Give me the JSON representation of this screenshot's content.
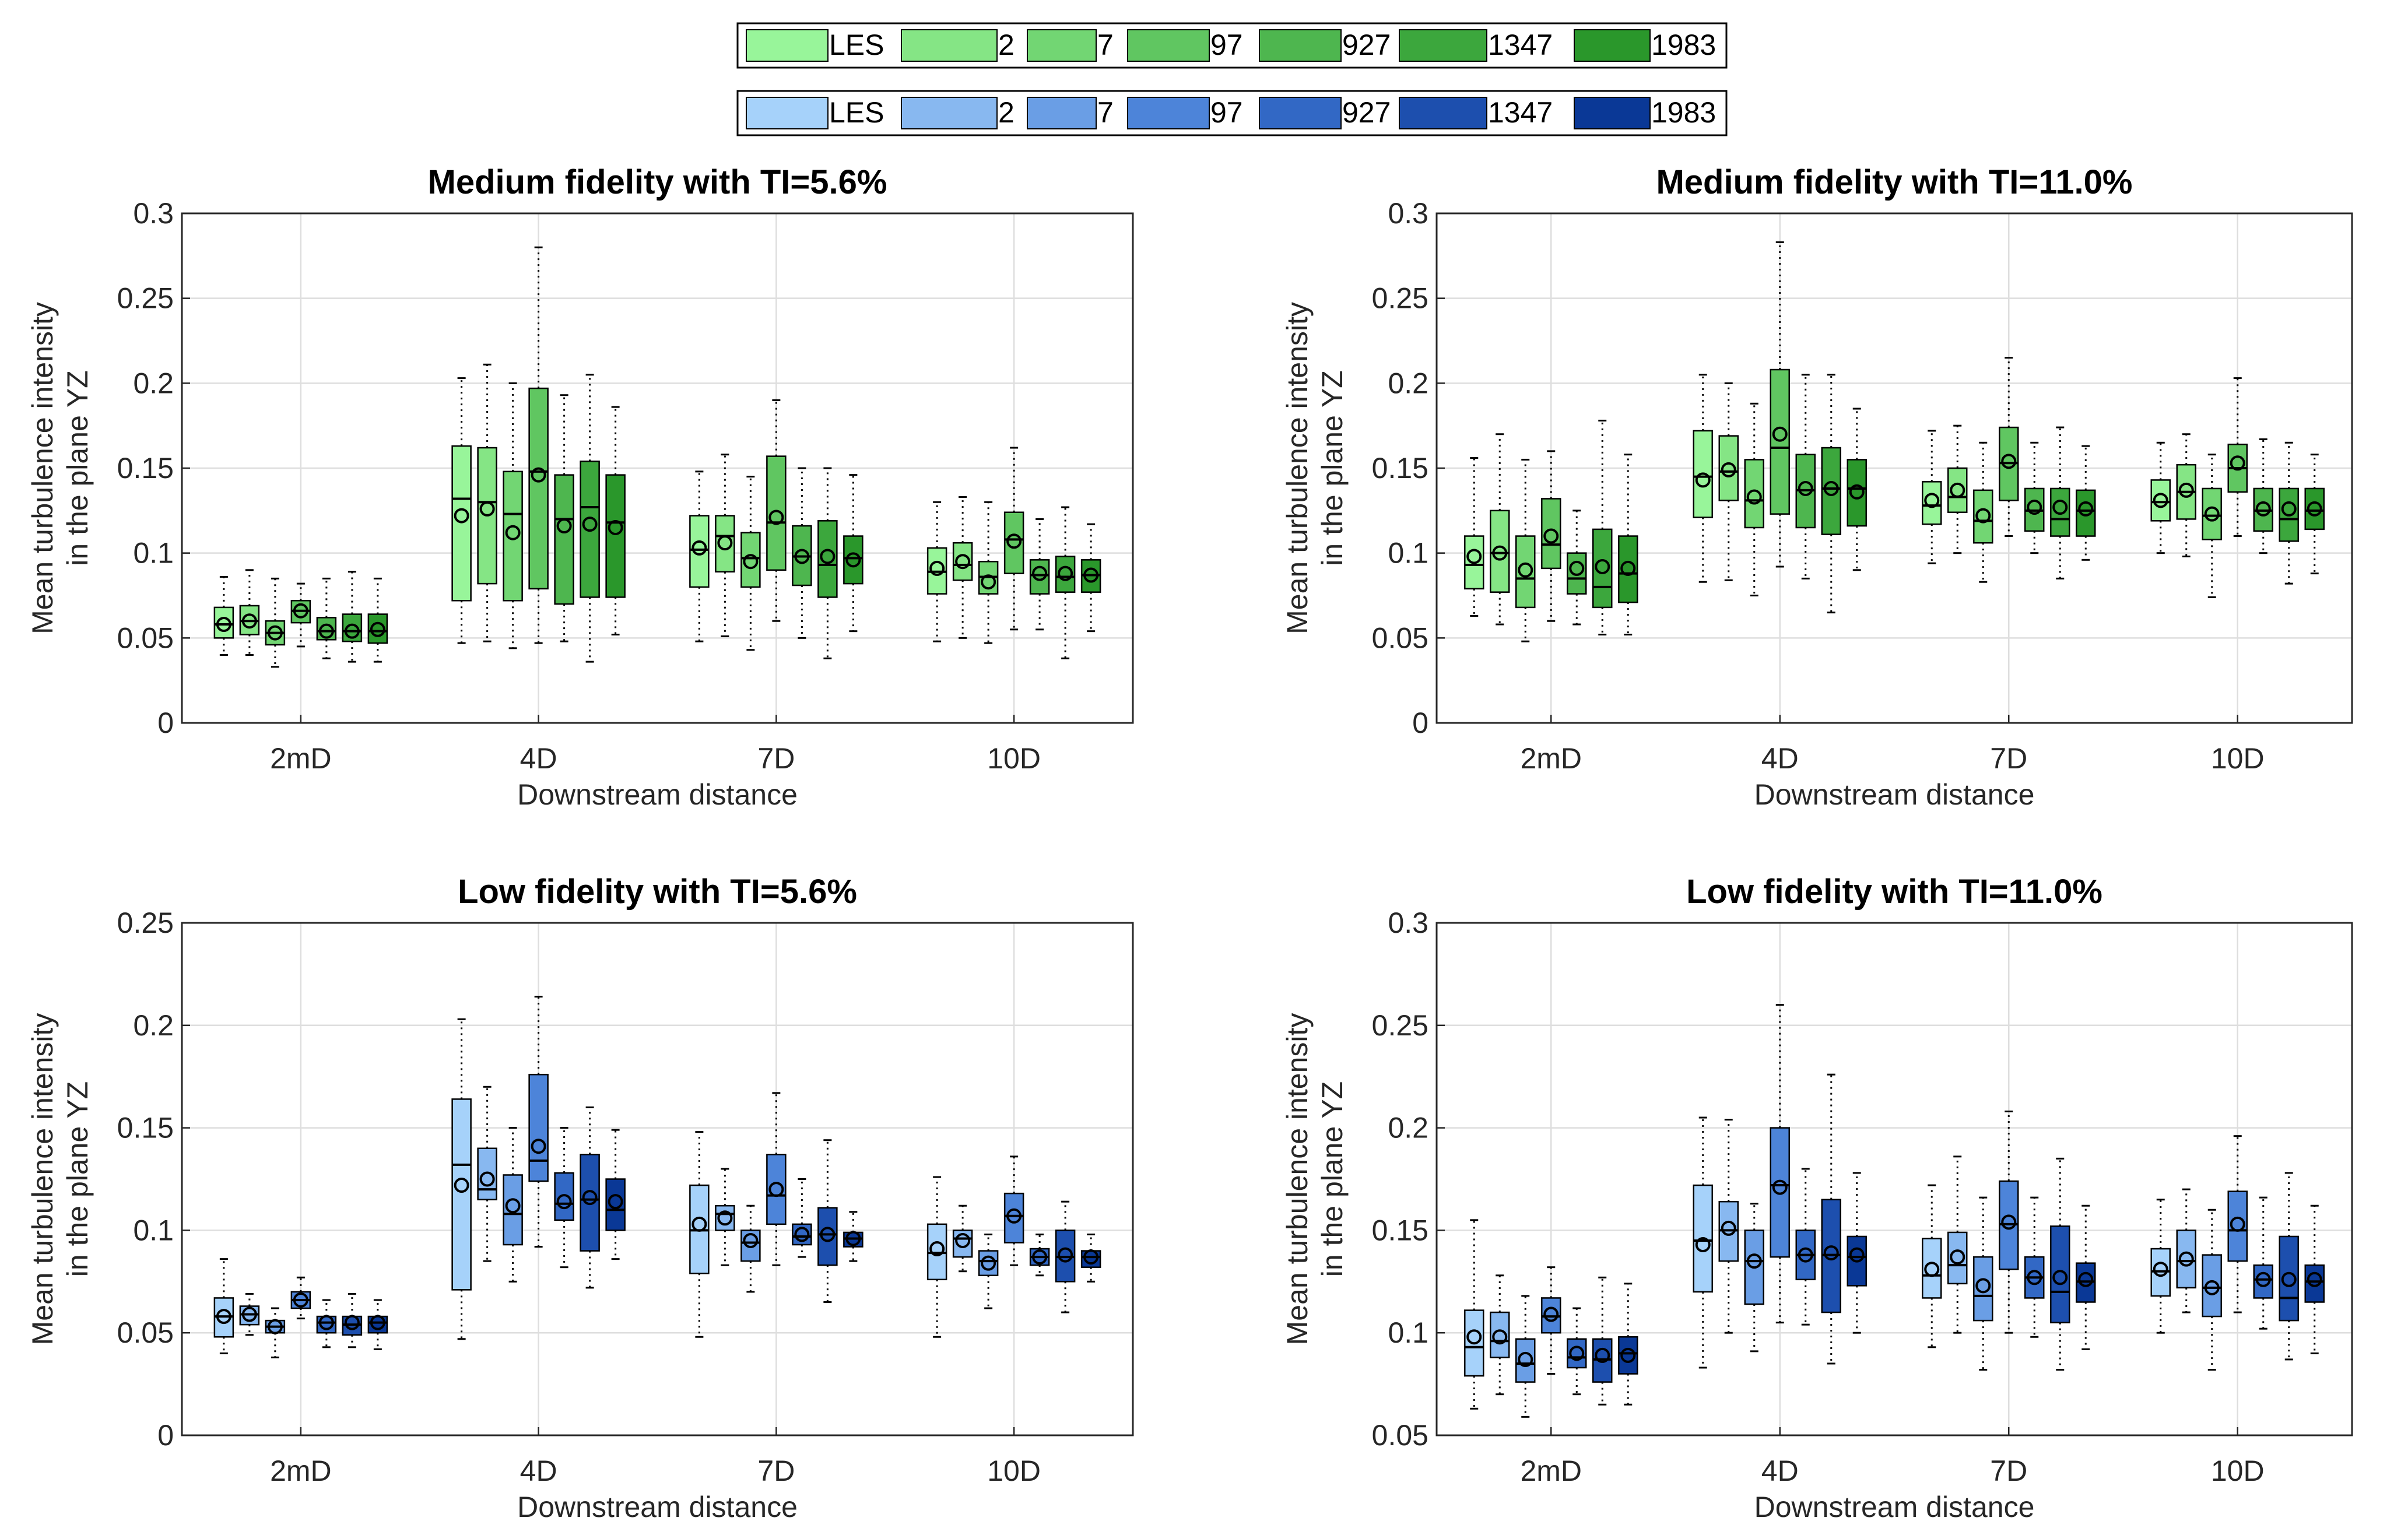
{
  "legends": [
    {
      "labels": [
        "LES",
        "2",
        "7",
        "97",
        "927",
        "1347",
        "1983"
      ],
      "colors": [
        "#98f59a",
        "#85e585",
        "#72d673",
        "#60c661",
        "#4eb64f",
        "#3ca73d",
        "#2a972b"
      ]
    },
    {
      "labels": [
        "LES",
        "2",
        "7",
        "97",
        "927",
        "1347",
        "1983"
      ],
      "colors": [
        "#a6d2fa",
        "#88b8f0",
        "#6a9ee5",
        "#4d84d9",
        "#3268c5",
        "#1d4fae",
        "#0a3896"
      ]
    }
  ],
  "chart_data": [
    {
      "type": "boxplot",
      "title": "Medium fidelity with TI=5.6%",
      "xlabel": "Downstream distance",
      "ylabel": [
        "Mean turbulence intensity",
        "in the plane YZ"
      ],
      "categories": [
        "2mD",
        "4D",
        "7D",
        "10D"
      ],
      "ylim": [
        0,
        0.3
      ],
      "yticks": [
        0,
        0.05,
        0.1,
        0.15,
        0.2,
        0.25,
        0.3
      ],
      "ytick_labels": [
        "0",
        "0.05",
        "0.1",
        "0.15",
        "0.2",
        "0.25",
        "0.3"
      ],
      "palette": 0,
      "groups": [
        [
          [
            0.04,
            0.05,
            0.058,
            0.068,
            0.086,
            0.058
          ],
          [
            0.04,
            0.052,
            0.06,
            0.069,
            0.09,
            0.06
          ],
          [
            0.033,
            0.046,
            0.053,
            0.06,
            0.085,
            0.053
          ],
          [
            0.045,
            0.059,
            0.066,
            0.072,
            0.082,
            0.066
          ],
          [
            0.038,
            0.049,
            0.054,
            0.062,
            0.085,
            0.054
          ],
          [
            0.036,
            0.048,
            0.054,
            0.064,
            0.089,
            0.054
          ],
          [
            0.036,
            0.047,
            0.054,
            0.064,
            0.085,
            0.055
          ]
        ],
        [
          [
            0.047,
            0.072,
            0.132,
            0.163,
            0.203,
            0.122
          ],
          [
            0.048,
            0.082,
            0.13,
            0.162,
            0.211,
            0.126
          ],
          [
            0.044,
            0.072,
            0.123,
            0.148,
            0.2,
            0.112
          ],
          [
            0.047,
            0.079,
            0.148,
            0.197,
            0.28,
            0.146
          ],
          [
            0.048,
            0.07,
            0.12,
            0.146,
            0.193,
            0.116
          ],
          [
            0.036,
            0.074,
            0.127,
            0.154,
            0.205,
            0.117
          ],
          [
            0.052,
            0.074,
            0.118,
            0.146,
            0.186,
            0.115
          ]
        ],
        [
          [
            0.048,
            0.08,
            0.102,
            0.122,
            0.148,
            0.103
          ],
          [
            0.051,
            0.089,
            0.11,
            0.122,
            0.158,
            0.106
          ],
          [
            0.043,
            0.08,
            0.097,
            0.112,
            0.145,
            0.095
          ],
          [
            0.06,
            0.09,
            0.118,
            0.157,
            0.19,
            0.121
          ],
          [
            0.05,
            0.081,
            0.098,
            0.116,
            0.15,
            0.098
          ],
          [
            0.038,
            0.074,
            0.093,
            0.119,
            0.15,
            0.098
          ],
          [
            0.054,
            0.082,
            0.097,
            0.11,
            0.146,
            0.096
          ]
        ],
        [
          [
            0.048,
            0.076,
            0.089,
            0.103,
            0.13,
            0.091
          ],
          [
            0.05,
            0.084,
            0.093,
            0.106,
            0.133,
            0.095
          ],
          [
            0.047,
            0.076,
            0.086,
            0.095,
            0.13,
            0.083
          ],
          [
            0.055,
            0.088,
            0.108,
            0.124,
            0.162,
            0.107
          ],
          [
            0.055,
            0.076,
            0.087,
            0.096,
            0.12,
            0.088
          ],
          [
            0.038,
            0.077,
            0.086,
            0.098,
            0.127,
            0.088
          ],
          [
            0.054,
            0.077,
            0.087,
            0.096,
            0.117,
            0.087
          ]
        ]
      ]
    },
    {
      "type": "boxplot",
      "title": "Medium fidelity with TI=11.0%",
      "xlabel": "Downstream distance",
      "ylabel": [
        "Mean turbulence intensity",
        "in the plane YZ"
      ],
      "categories": [
        "2mD",
        "4D",
        "7D",
        "10D"
      ],
      "ylim": [
        0,
        0.3
      ],
      "yticks": [
        0,
        0.05,
        0.1,
        0.15,
        0.2,
        0.25,
        0.3
      ],
      "ytick_labels": [
        "0",
        "0.05",
        "0.1",
        "0.15",
        "0.2",
        "0.25",
        "0.3"
      ],
      "palette": 0,
      "groups": [
        [
          [
            0.063,
            0.079,
            0.093,
            0.11,
            0.156,
            0.098
          ],
          [
            0.058,
            0.077,
            0.1,
            0.125,
            0.17,
            0.1
          ],
          [
            0.048,
            0.068,
            0.085,
            0.11,
            0.155,
            0.09
          ],
          [
            0.06,
            0.091,
            0.105,
            0.132,
            0.16,
            0.11
          ],
          [
            0.058,
            0.076,
            0.085,
            0.1,
            0.125,
            0.091
          ],
          [
            0.052,
            0.068,
            0.08,
            0.114,
            0.178,
            0.092
          ],
          [
            0.052,
            0.071,
            0.088,
            0.11,
            0.158,
            0.091
          ]
        ],
        [
          [
            0.083,
            0.121,
            0.145,
            0.172,
            0.205,
            0.143
          ],
          [
            0.084,
            0.131,
            0.148,
            0.169,
            0.2,
            0.149
          ],
          [
            0.075,
            0.115,
            0.131,
            0.155,
            0.188,
            0.133
          ],
          [
            0.092,
            0.123,
            0.162,
            0.208,
            0.283,
            0.17
          ],
          [
            0.085,
            0.115,
            0.137,
            0.158,
            0.205,
            0.138
          ],
          [
            0.065,
            0.111,
            0.138,
            0.162,
            0.205,
            0.138
          ],
          [
            0.09,
            0.116,
            0.138,
            0.155,
            0.185,
            0.136
          ]
        ],
        [
          [
            0.094,
            0.117,
            0.128,
            0.142,
            0.172,
            0.131
          ],
          [
            0.1,
            0.124,
            0.133,
            0.15,
            0.175,
            0.137
          ],
          [
            0.083,
            0.106,
            0.119,
            0.137,
            0.165,
            0.122
          ],
          [
            0.11,
            0.131,
            0.153,
            0.174,
            0.215,
            0.154
          ],
          [
            0.1,
            0.113,
            0.125,
            0.138,
            0.165,
            0.127
          ],
          [
            0.085,
            0.11,
            0.12,
            0.138,
            0.174,
            0.127
          ],
          [
            0.096,
            0.11,
            0.125,
            0.137,
            0.163,
            0.126
          ]
        ],
        [
          [
            0.1,
            0.119,
            0.13,
            0.143,
            0.165,
            0.131
          ],
          [
            0.098,
            0.12,
            0.136,
            0.152,
            0.17,
            0.137
          ],
          [
            0.074,
            0.108,
            0.122,
            0.138,
            0.158,
            0.123
          ],
          [
            0.11,
            0.136,
            0.15,
            0.164,
            0.203,
            0.153
          ],
          [
            0.1,
            0.113,
            0.125,
            0.138,
            0.167,
            0.126
          ],
          [
            0.082,
            0.107,
            0.12,
            0.138,
            0.165,
            0.126
          ],
          [
            0.088,
            0.114,
            0.125,
            0.138,
            0.158,
            0.126
          ]
        ]
      ]
    },
    {
      "type": "boxplot",
      "title": "Low fidelity with TI=5.6%",
      "xlabel": "Downstream distance",
      "ylabel": [
        "Mean turbulence intensity",
        "in the plane YZ"
      ],
      "categories": [
        "2mD",
        "4D",
        "7D",
        "10D"
      ],
      "ylim": [
        0,
        0.25
      ],
      "yticks": [
        0,
        0.05,
        0.1,
        0.15,
        0.2,
        0.25
      ],
      "ytick_labels": [
        "0",
        "0.05",
        "0.1",
        "0.15",
        "0.2",
        "0.25"
      ],
      "palette": 1,
      "groups": [
        [
          [
            0.04,
            0.048,
            0.058,
            0.067,
            0.086,
            0.058
          ],
          [
            0.049,
            0.054,
            0.059,
            0.063,
            0.069,
            0.059
          ],
          [
            0.038,
            0.05,
            0.053,
            0.056,
            0.062,
            0.053
          ],
          [
            0.057,
            0.062,
            0.066,
            0.07,
            0.077,
            0.066
          ],
          [
            0.043,
            0.05,
            0.055,
            0.058,
            0.066,
            0.055
          ],
          [
            0.043,
            0.049,
            0.054,
            0.058,
            0.069,
            0.055
          ],
          [
            0.042,
            0.05,
            0.055,
            0.058,
            0.066,
            0.055
          ]
        ],
        [
          [
            0.047,
            0.071,
            0.132,
            0.164,
            0.203,
            0.122
          ],
          [
            0.085,
            0.115,
            0.12,
            0.14,
            0.17,
            0.125
          ],
          [
            0.075,
            0.093,
            0.108,
            0.127,
            0.15,
            0.112
          ],
          [
            0.092,
            0.124,
            0.134,
            0.176,
            0.214,
            0.141
          ],
          [
            0.082,
            0.105,
            0.113,
            0.128,
            0.15,
            0.114
          ],
          [
            0.072,
            0.09,
            0.115,
            0.137,
            0.16,
            0.116
          ],
          [
            0.086,
            0.1,
            0.11,
            0.125,
            0.149,
            0.114
          ]
        ],
        [
          [
            0.048,
            0.079,
            0.1,
            0.122,
            0.148,
            0.103
          ],
          [
            0.083,
            0.1,
            0.108,
            0.112,
            0.13,
            0.106
          ],
          [
            0.07,
            0.085,
            0.094,
            0.1,
            0.112,
            0.095
          ],
          [
            0.083,
            0.103,
            0.117,
            0.137,
            0.167,
            0.12
          ],
          [
            0.087,
            0.093,
            0.097,
            0.103,
            0.125,
            0.098
          ],
          [
            0.065,
            0.083,
            0.098,
            0.111,
            0.144,
            0.098
          ],
          [
            0.085,
            0.092,
            0.096,
            0.099,
            0.109,
            0.096
          ]
        ],
        [
          [
            0.048,
            0.076,
            0.089,
            0.103,
            0.126,
            0.091
          ],
          [
            0.08,
            0.087,
            0.096,
            0.1,
            0.112,
            0.095
          ],
          [
            0.062,
            0.078,
            0.085,
            0.09,
            0.098,
            0.084
          ],
          [
            0.083,
            0.094,
            0.107,
            0.118,
            0.136,
            0.107
          ],
          [
            0.078,
            0.083,
            0.087,
            0.091,
            0.098,
            0.087
          ],
          [
            0.06,
            0.075,
            0.087,
            0.1,
            0.114,
            0.088
          ],
          [
            0.075,
            0.082,
            0.087,
            0.09,
            0.098,
            0.087
          ]
        ]
      ]
    },
    {
      "type": "boxplot",
      "title": "Low fidelity with TI=11.0%",
      "xlabel": "Downstream distance",
      "ylabel": [
        "Mean turbulence intensity",
        "in the plane YZ"
      ],
      "categories": [
        "2mD",
        "4D",
        "7D",
        "10D"
      ],
      "ylim": [
        0.05,
        0.3
      ],
      "yticks": [
        0.05,
        0.1,
        0.15,
        0.2,
        0.25,
        0.3
      ],
      "ytick_labels": [
        "0.05",
        "0.1",
        "0.15",
        "0.2",
        "0.25",
        "0.3"
      ],
      "palette": 1,
      "groups": [
        [
          [
            0.063,
            0.079,
            0.093,
            0.111,
            0.155,
            0.098
          ],
          [
            0.07,
            0.088,
            0.096,
            0.11,
            0.128,
            0.098
          ],
          [
            0.059,
            0.076,
            0.085,
            0.097,
            0.118,
            0.087
          ],
          [
            0.08,
            0.1,
            0.108,
            0.117,
            0.132,
            0.109
          ],
          [
            0.07,
            0.083,
            0.088,
            0.097,
            0.112,
            0.09
          ],
          [
            0.065,
            0.076,
            0.087,
            0.097,
            0.127,
            0.089
          ],
          [
            0.065,
            0.08,
            0.09,
            0.098,
            0.124,
            0.089
          ]
        ],
        [
          [
            0.083,
            0.12,
            0.145,
            0.172,
            0.205,
            0.143
          ],
          [
            0.1,
            0.135,
            0.15,
            0.164,
            0.204,
            0.151
          ],
          [
            0.091,
            0.114,
            0.135,
            0.15,
            0.163,
            0.135
          ],
          [
            0.105,
            0.137,
            0.172,
            0.2,
            0.26,
            0.171
          ],
          [
            0.104,
            0.126,
            0.138,
            0.15,
            0.18,
            0.138
          ],
          [
            0.085,
            0.11,
            0.138,
            0.165,
            0.226,
            0.139
          ],
          [
            0.1,
            0.123,
            0.137,
            0.147,
            0.178,
            0.138
          ]
        ],
        [
          [
            0.093,
            0.117,
            0.128,
            0.146,
            0.172,
            0.131
          ],
          [
            0.1,
            0.124,
            0.133,
            0.149,
            0.186,
            0.137
          ],
          [
            0.082,
            0.106,
            0.118,
            0.137,
            0.166,
            0.123
          ],
          [
            0.1,
            0.131,
            0.153,
            0.174,
            0.208,
            0.154
          ],
          [
            0.098,
            0.117,
            0.127,
            0.137,
            0.166,
            0.127
          ],
          [
            0.082,
            0.105,
            0.12,
            0.152,
            0.185,
            0.127
          ],
          [
            0.092,
            0.115,
            0.125,
            0.134,
            0.162,
            0.126
          ]
        ],
        [
          [
            0.1,
            0.118,
            0.13,
            0.141,
            0.165,
            0.131
          ],
          [
            0.11,
            0.122,
            0.135,
            0.15,
            0.17,
            0.136
          ],
          [
            0.082,
            0.108,
            0.122,
            0.138,
            0.16,
            0.122
          ],
          [
            0.11,
            0.135,
            0.15,
            0.169,
            0.196,
            0.153
          ],
          [
            0.102,
            0.117,
            0.126,
            0.133,
            0.166,
            0.126
          ],
          [
            0.087,
            0.106,
            0.117,
            0.147,
            0.178,
            0.126
          ],
          [
            0.09,
            0.115,
            0.125,
            0.133,
            0.162,
            0.126
          ]
        ]
      ]
    }
  ]
}
